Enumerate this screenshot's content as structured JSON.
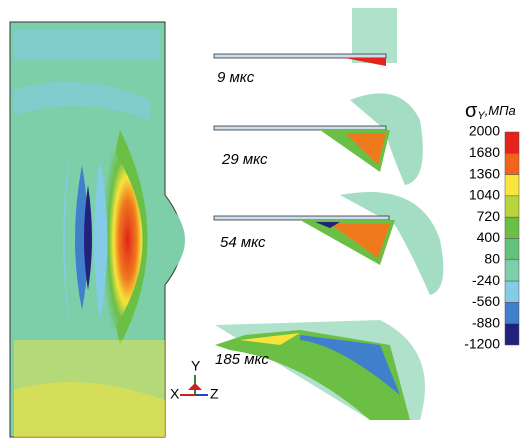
{
  "panels": [
    {
      "label": "9 мкс"
    },
    {
      "label": "29 мкс"
    },
    {
      "label": "54 мкс"
    },
    {
      "label": "185 мкс"
    }
  ],
  "colorbar": {
    "symbol": "σ",
    "subscript": "Y",
    "unit": ",МПа",
    "ticks": [
      2000,
      1680,
      1360,
      1040,
      720,
      400,
      80,
      -240,
      -560,
      -880,
      -1200
    ],
    "colors": [
      "#e3231c",
      "#f0641e",
      "#f7e43c",
      "#b9d43c",
      "#6cbf45",
      "#62c27a",
      "#7ccfa9",
      "#84cbe6",
      "#3f7fcc",
      "#22227a"
    ]
  },
  "axes": {
    "x": "X",
    "y": "Y",
    "z": "Z"
  }
}
